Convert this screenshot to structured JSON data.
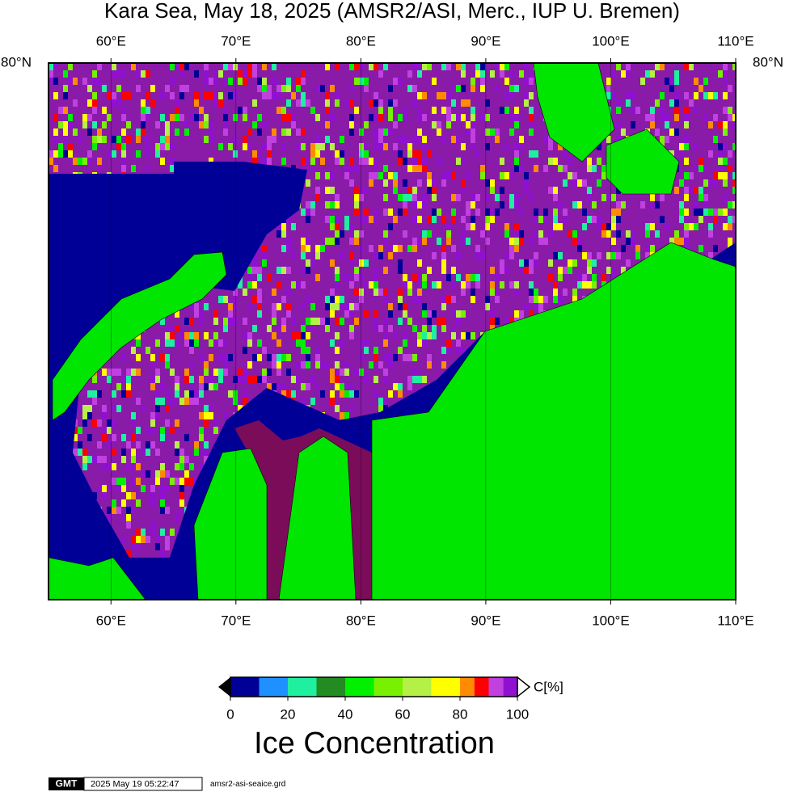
{
  "map": {
    "title": "Kara Sea, May 18, 2025 (AMSR2/ASI, Merc., IUP U. Bremen)",
    "xlim": [
      55,
      110
    ],
    "xticks": [
      {
        "value": 60,
        "label": "60°E"
      },
      {
        "value": 70,
        "label": "70°E"
      },
      {
        "value": 80,
        "label": "80°E"
      },
      {
        "value": 90,
        "label": "90°E"
      },
      {
        "value": 100,
        "label": "100°E"
      },
      {
        "value": 110,
        "label": "110°E"
      }
    ],
    "lat_label": "80°N"
  },
  "colorbar": {
    "bins": [
      0,
      10,
      20,
      30,
      40,
      50,
      60,
      70,
      80,
      85,
      90,
      95,
      100
    ],
    "colors": [
      "#000096",
      "#1e90ff",
      "#1ef0a0",
      "#228b22",
      "#00f000",
      "#78f000",
      "#b4f046",
      "#ffff00",
      "#ff8c00",
      "#ff0000",
      "#c040e0",
      "#9010d0"
    ],
    "ticks": [
      0,
      20,
      40,
      60,
      80,
      100
    ],
    "unit": "C[%]",
    "title": "Ice Concentration"
  },
  "footer": {
    "logo": "GMT",
    "timestamp": "2025 May 19 05:22:47",
    "file": "amsr2-asi-seaice.grd"
  }
}
